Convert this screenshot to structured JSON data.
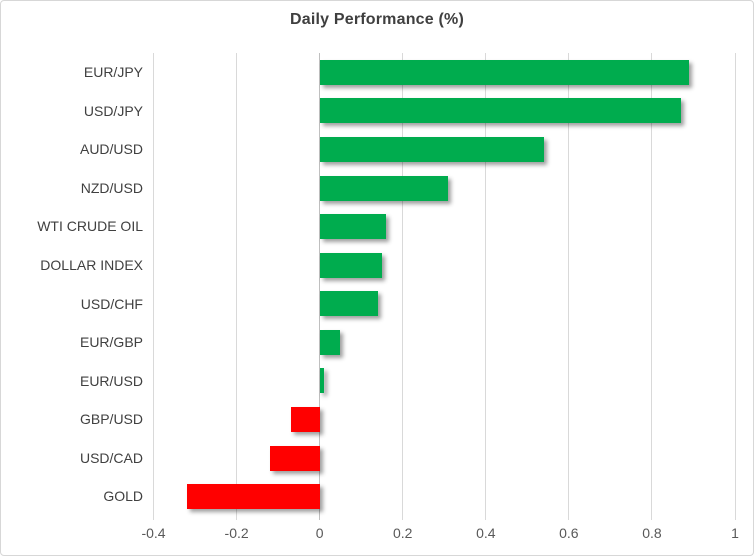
{
  "window": {
    "background": "#ffffff",
    "border_color": "#d7d7d7"
  },
  "chart_data": {
    "type": "bar",
    "orientation": "horizontal",
    "title": "Daily Performance (%)",
    "categories": [
      "EUR/JPY",
      "USD/JPY",
      "AUD/USD",
      "NZD/USD",
      "WTI CRUDE OIL",
      "DOLLAR INDEX",
      "USD/CHF",
      "EUR/GBP",
      "EUR/USD",
      "GBP/USD",
      "USD/CAD",
      "GOLD"
    ],
    "values": [
      0.89,
      0.87,
      0.54,
      0.31,
      0.16,
      0.15,
      0.14,
      0.05,
      0.01,
      -0.07,
      -0.12,
      -0.32
    ],
    "xlim": [
      -0.5,
      1.0
    ],
    "x_ticks": [
      -0.4,
      -0.2,
      0,
      0.2,
      0.4,
      0.6,
      0.8,
      1
    ],
    "x_tick_labels": [
      "-0.4",
      "-0.2",
      "0",
      "0.2",
      "0.4",
      "0.6",
      "0.8",
      "1"
    ],
    "grid": "vertical",
    "legend": "none",
    "xlabel": "",
    "ylabel": "",
    "positive_color": "#00ac4e",
    "negative_color": "#ff0000",
    "gridline_color": "#d9d9d9",
    "zero_line_color": "#bfbfbf",
    "title_color": "#3f3f3f",
    "category_label_color": "#404040",
    "tick_label_color": "#595959"
  }
}
